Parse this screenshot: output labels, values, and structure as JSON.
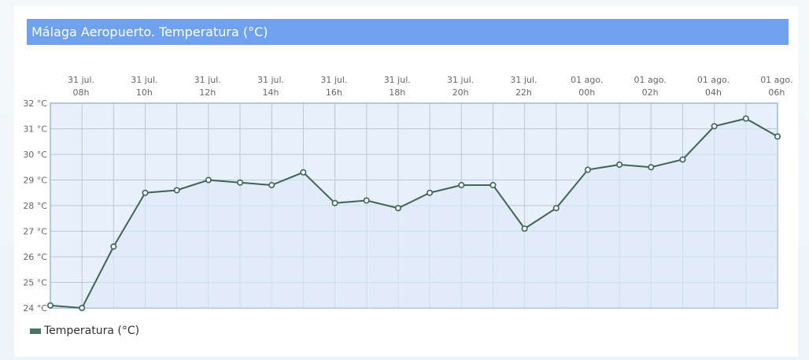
{
  "chart_data": {
    "type": "line",
    "title": "Málaga Aeropuerto. Temperatura (°C)",
    "series": [
      {
        "name": "Temperatura (°C)",
        "values": [
          24.1,
          24.0,
          26.4,
          28.5,
          28.6,
          29.0,
          28.9,
          28.8,
          29.3,
          28.1,
          28.2,
          27.9,
          28.5,
          28.8,
          28.8,
          27.1,
          27.9,
          29.4,
          29.6,
          29.5,
          29.8,
          31.1,
          31.4,
          30.7
        ]
      }
    ],
    "x_tick_labels": [
      [
        "31 jul.",
        "08h"
      ],
      [
        "31 jul.",
        "10h"
      ],
      [
        "31 jul.",
        "12h"
      ],
      [
        "31 jul.",
        "14h"
      ],
      [
        "31 jul.",
        "16h"
      ],
      [
        "31 jul.",
        "18h"
      ],
      [
        "31 jul.",
        "20h"
      ],
      [
        "31 jul.",
        "22h"
      ],
      [
        "01 ago.",
        "00h"
      ],
      [
        "01 ago.",
        "02h"
      ],
      [
        "01 ago.",
        "04h"
      ],
      [
        "01 ago.",
        "06h"
      ]
    ],
    "y_tick_labels": [
      "24 °C",
      "25 °C",
      "26 °C",
      "27 °C",
      "28 °C",
      "29 °C",
      "30 °C",
      "31 °C",
      "32 °C"
    ],
    "ylim": [
      24,
      32
    ],
    "grid": true,
    "legend_position": "bottom-left",
    "colors": {
      "line": "#3f6458",
      "plot_bg": "#e7f0fb",
      "grid": "#b9c8d6",
      "border": "#9fb7ce",
      "title_bar": "#6ea2ee"
    }
  }
}
